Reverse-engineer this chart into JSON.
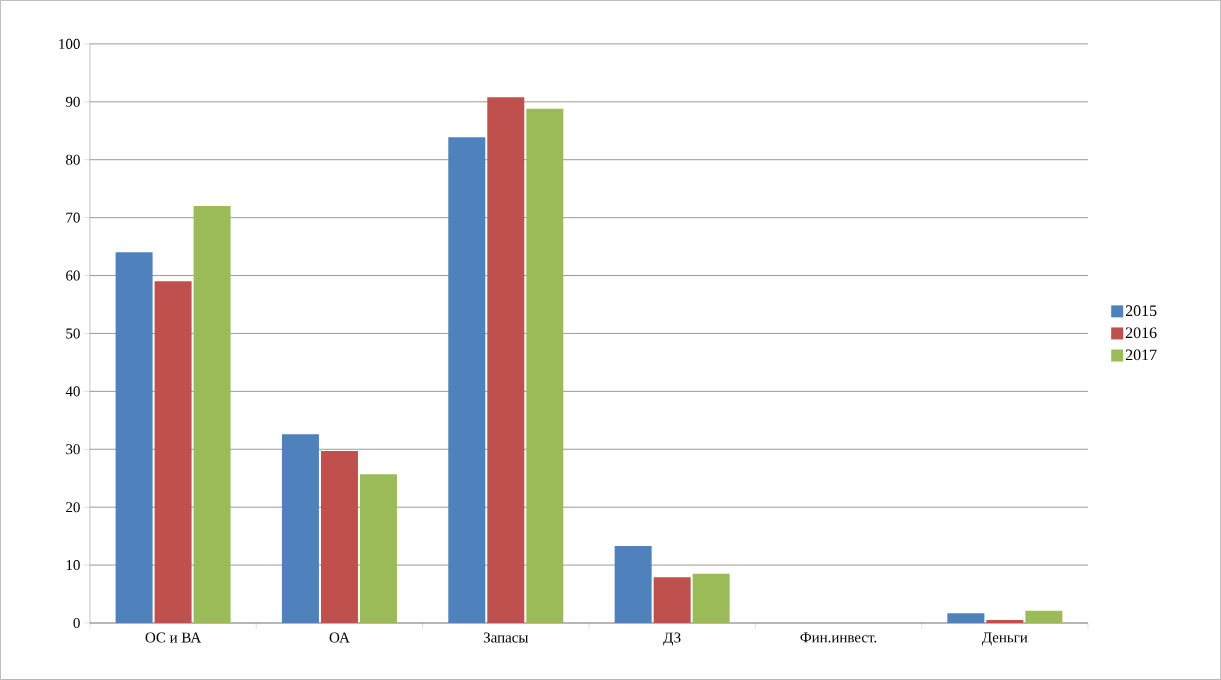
{
  "chart_data": {
    "type": "bar",
    "categories": [
      "ОС и ВА",
      "ОА",
      "Запасы",
      "ДЗ",
      "Фин.инвест.",
      "Деньги"
    ],
    "series": [
      {
        "name": "2015",
        "color": "#4f81bd",
        "values": [
          64,
          32.6,
          83.9,
          13.3,
          0,
          1.7
        ]
      },
      {
        "name": "2016",
        "color": "#c0504d",
        "values": [
          59,
          29.7,
          90.8,
          7.9,
          0,
          0.5
        ]
      },
      {
        "name": "2017",
        "color": "#9bbb59",
        "values": [
          72,
          25.7,
          88.8,
          8.5,
          0,
          2.1
        ]
      }
    ],
    "ylim": [
      0,
      100
    ],
    "yticks": [
      0,
      10,
      20,
      30,
      40,
      50,
      60,
      70,
      80,
      90,
      100
    ],
    "grid": "y",
    "legend": "right"
  }
}
